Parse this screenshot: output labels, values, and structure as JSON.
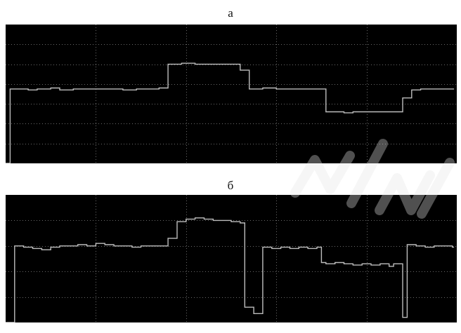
{
  "labels": {
    "panel_a": "а",
    "panel_b": "б"
  },
  "colors": {
    "background": "#000000",
    "grid": "#6a6a6a",
    "signal": "#bdbdbd",
    "watermark": "#e6e6e6"
  },
  "chart_data": [
    {
      "type": "line",
      "title": "а",
      "step": true,
      "grid": true,
      "xlim": [
        0,
        50
      ],
      "ylim": [
        0,
        7
      ],
      "x_gridlines": 5,
      "y_gridlines": 7,
      "series": [
        {
          "x": [
            0,
            0.5,
            1.0,
            2.5,
            3.5,
            5.0,
            6.0,
            7.5,
            9.0,
            10.5,
            11.5,
            13.0,
            14.5,
            16.0,
            17.0,
            18.0,
            19.5,
            21.0,
            22.5,
            24.0,
            25.5,
            26.0,
            27.0,
            28.5,
            30.0,
            31.5,
            33.0,
            34.5,
            35.5,
            36.0,
            37.5,
            38.5,
            40.0,
            41.0,
            42.0,
            43.0,
            44.0,
            45.0,
            46.0,
            47.5,
            49.5
          ],
          "y": [
            0,
            3.75,
            3.75,
            3.7,
            3.75,
            3.8,
            3.7,
            3.75,
            3.75,
            3.75,
            3.75,
            3.7,
            3.75,
            3.75,
            3.8,
            5.0,
            5.05,
            5.0,
            5.0,
            5.0,
            5.0,
            4.7,
            3.75,
            3.8,
            3.75,
            3.75,
            3.75,
            3.75,
            2.6,
            2.6,
            2.55,
            2.6,
            2.6,
            2.6,
            2.6,
            2.6,
            3.3,
            3.7,
            3.75,
            3.75,
            3.75
          ]
        }
      ]
    },
    {
      "type": "line",
      "title": "б",
      "step": true,
      "grid": true,
      "xlim": [
        0,
        50
      ],
      "ylim": [
        0,
        5
      ],
      "x_gridlines": 5,
      "y_gridlines": 5,
      "series": [
        {
          "x": [
            0,
            1.0,
            2.0,
            3.0,
            4.0,
            5.0,
            6.0,
            7.0,
            8.0,
            9.0,
            10.0,
            11.0,
            12.0,
            13.0,
            14.0,
            15.0,
            16.0,
            17.0,
            18.0,
            19.0,
            20.0,
            21.0,
            22.0,
            23.0,
            24.0,
            25.0,
            26.0,
            26.5,
            27.5,
            28.5,
            29.5,
            30.5,
            31.5,
            32.5,
            33.5,
            34.5,
            35.0,
            35.5,
            36.5,
            37.5,
            38.5,
            39.5,
            40.5,
            41.5,
            42.5,
            43.0,
            44.0,
            44.5,
            45.5,
            46.5,
            47.5,
            48.5,
            49.5
          ],
          "y": [
            0,
            3.0,
            2.95,
            2.9,
            2.85,
            2.95,
            3.0,
            3.0,
            3.05,
            3.0,
            3.1,
            3.05,
            3.0,
            3.0,
            2.95,
            3.0,
            3.0,
            3.0,
            3.3,
            3.95,
            4.05,
            4.1,
            4.05,
            4.0,
            4.0,
            3.95,
            3.9,
            0.6,
            0.35,
            2.95,
            2.9,
            2.95,
            2.9,
            2.95,
            2.9,
            2.95,
            2.35,
            2.3,
            2.35,
            2.3,
            2.25,
            2.3,
            2.25,
            2.3,
            2.2,
            2.3,
            0.2,
            3.05,
            3.0,
            2.95,
            3.0,
            3.0,
            2.95
          ]
        }
      ]
    }
  ]
}
